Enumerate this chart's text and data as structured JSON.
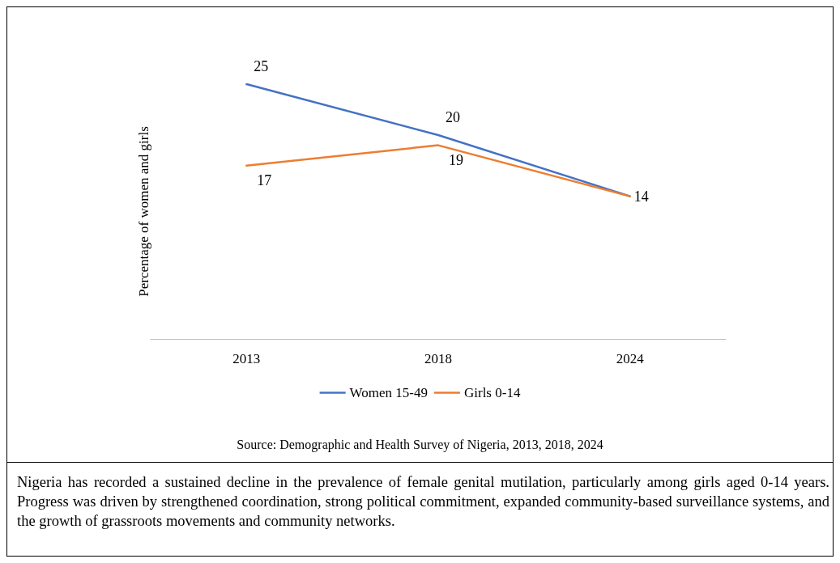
{
  "chart_data": {
    "type": "line",
    "ylabel": "Percentage of women and girls",
    "categories": [
      "2013",
      "2018",
      "2024"
    ],
    "series": [
      {
        "name": "Women 15-49",
        "color": "#4472c4",
        "values": [
          25,
          20,
          14
        ],
        "value_labels": [
          "25",
          "20",
          "14"
        ]
      },
      {
        "name": "Girls 0-14",
        "color": "#ed7d31",
        "values": [
          17,
          19,
          14
        ],
        "value_labels": [
          "17",
          "19",
          null
        ]
      }
    ],
    "relative": false,
    "legend": "bottom",
    "marker": "none",
    "line_style": "solid",
    "grid": false,
    "annotations": [
      "Source: Demographic and Health Survey of Nigeria, 2013, 2018, 2024",
      "Nigeria has recorded a sustained decline in the prevalence of female genital mutilation, particularly among girls aged 0-14 years. Progress was driven by strengthened coordination, strong political commitment, expanded community-based surveillance systems, and the growth of grassroots movements and community networks."
    ]
  }
}
